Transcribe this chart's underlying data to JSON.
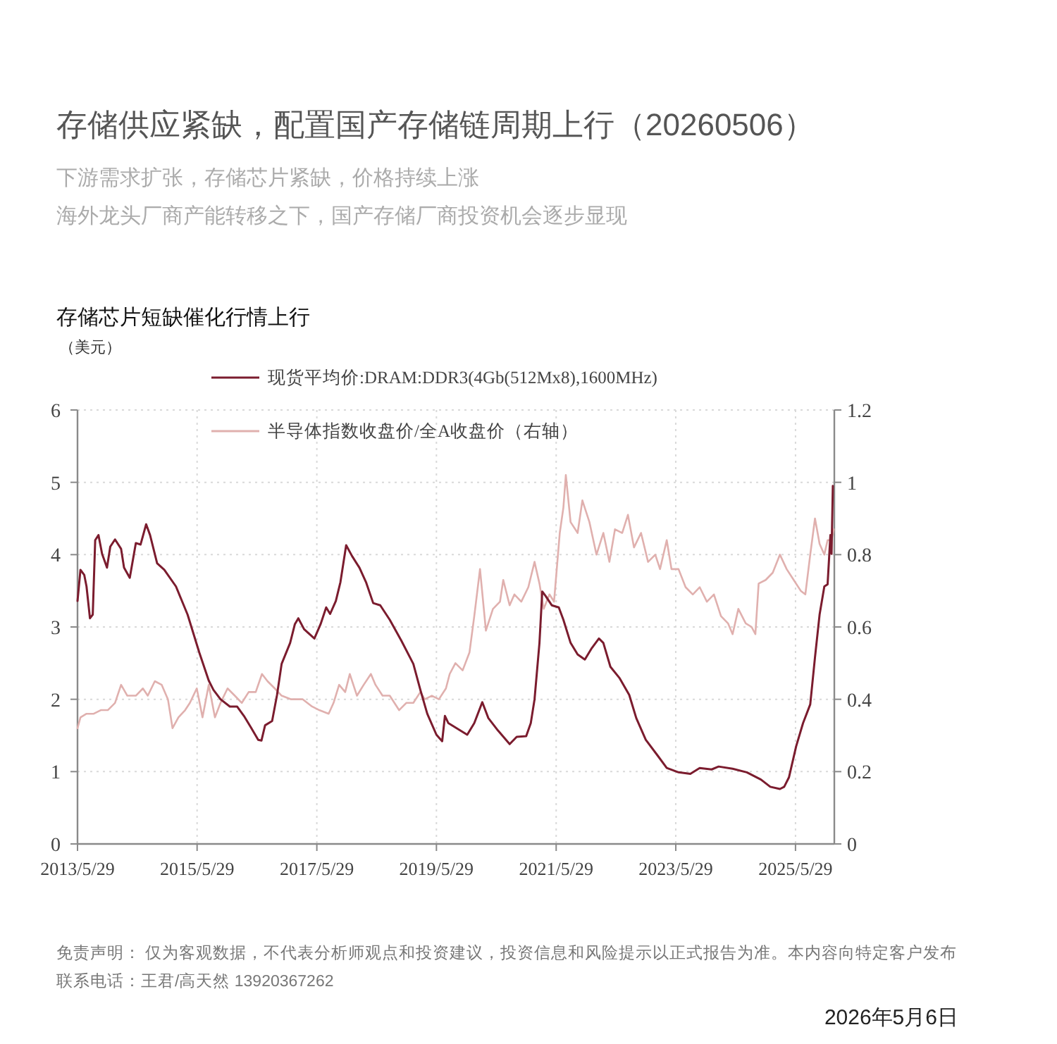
{
  "chart_data": {
    "type": "line",
    "title": "存储供应紧缺，配置国产存储链周期上行（20260506）",
    "subtitle": "下游需求扩张，存储芯片紧缺，价格持续上涨",
    "ylabel": "（美元）",
    "annotations": [
      "海外龙头厂商产能转移之下，国产存储厂商投资机会逐步显现",
      "存储芯片短缺催化行情上行",
      "免责声明： 仅为客观数据，不代表分析师观点和投资建议，投资信息和风险提示以正式报告为准。本内容向特定客户发布",
      "联系电话：王君/高天然 13920367262",
      "2026年5月6日"
    ],
    "xlim": [
      "2013-05-29",
      "2026-01-21"
    ],
    "xticks": [
      {
        "value": "2013-05-29",
        "label": "2013/5/29"
      },
      {
        "value": "2015-05-29",
        "label": "2015/5/29"
      },
      {
        "value": "2017-05-29",
        "label": "2017/5/29"
      },
      {
        "value": "2019-05-29",
        "label": "2019/5/29"
      },
      {
        "value": "2021-05-29",
        "label": "2021/5/29"
      },
      {
        "value": "2023-05-29",
        "label": "2023/5/29"
      },
      {
        "value": "2025-05-29",
        "label": "2025/5/29"
      }
    ],
    "ylim": [
      0,
      6
    ],
    "yticks": [
      0,
      1,
      2,
      3,
      4,
      5,
      6
    ],
    "y2lim": [
      0,
      1.2
    ],
    "y2ticks": [
      0,
      0.2,
      0.4,
      0.6,
      0.8,
      1,
      1.2
    ],
    "grid": true,
    "legend": "top",
    "series": [
      {
        "name": "现货平均价:DRAM:DDR3(4Gb(512Mx8),1600MHz)",
        "color": "#7b1c2e",
        "x": [
          "2013-05-29",
          "2013-06-16",
          "2013-07-09",
          "2013-07-23",
          "2013-08-13",
          "2013-08-30",
          "2013-09-14",
          "2013-10-04",
          "2013-10-26",
          "2013-11-25",
          "2013-12-15",
          "2014-01-13",
          "2014-02-19",
          "2014-03-09",
          "2014-04-13",
          "2014-05-20",
          "2014-06-18",
          "2014-07-22",
          "2014-08-15",
          "2014-09-27",
          "2014-11-10",
          "2015-01-20",
          "2015-04-01",
          "2015-06-11",
          "2015-08-08",
          "2015-09-06",
          "2015-10-19",
          "2015-12-15",
          "2016-01-28",
          "2016-03-10",
          "2016-04-22",
          "2016-06-05",
          "2016-06-25",
          "2016-07-17",
          "2016-08-29",
          "2016-09-28",
          "2016-10-26",
          "2016-12-17",
          "2017-01-15",
          "2017-02-05",
          "2017-03-12",
          "2017-05-14",
          "2017-06-21",
          "2017-07-25",
          "2017-08-18",
          "2017-09-22",
          "2017-10-20",
          "2017-11-24",
          "2017-12-30",
          "2018-02-13",
          "2018-03-25",
          "2018-05-08",
          "2018-06-20",
          "2018-08-17",
          "2018-10-27",
          "2019-01-08",
          "2019-02-20",
          "2019-04-03",
          "2019-05-29",
          "2019-07-03",
          "2019-07-20",
          "2019-08-10",
          "2019-12-03",
          "2020-01-15",
          "2020-03-04",
          "2020-04-10",
          "2020-06-07",
          "2020-08-18",
          "2020-09-30",
          "2020-11-27",
          "2020-12-25",
          "2021-01-17",
          "2021-02-16",
          "2021-03-05",
          "2021-03-25",
          "2021-05-02",
          "2021-06-14",
          "2021-07-12",
          "2021-08-25",
          "2021-10-07",
          "2021-11-20",
          "2022-01-02",
          "2022-02-14",
          "2022-03-13",
          "2022-04-25",
          "2022-06-21",
          "2022-08-18",
          "2022-09-30",
          "2022-11-27",
          "2023-02-08",
          "2023-04-04",
          "2023-06-15",
          "2023-08-26",
          "2023-10-22",
          "2024-01-03",
          "2024-02-15",
          "2024-05-10",
          "2024-08-05",
          "2024-10-30",
          "2024-12-26",
          "2025-02-23",
          "2025-03-21",
          "2025-04-19",
          "2025-06-02",
          "2025-07-14",
          "2025-08-27",
          "2025-09-25",
          "2025-10-23",
          "2025-11-21",
          "2025-12-11",
          "2025-12-28",
          "2026-01-04",
          "2026-01-12"
        ],
        "values": [
          3.36,
          3.79,
          3.72,
          3.56,
          3.12,
          3.17,
          4.2,
          4.27,
          4.01,
          3.82,
          4.11,
          4.21,
          4.08,
          3.82,
          3.68,
          4.16,
          4.14,
          4.42,
          4.27,
          3.88,
          3.79,
          3.56,
          3.17,
          2.65,
          2.26,
          2.13,
          2.0,
          1.9,
          1.9,
          1.77,
          1.61,
          1.44,
          1.43,
          1.64,
          1.7,
          2.06,
          2.49,
          2.78,
          3.04,
          3.12,
          2.97,
          2.84,
          3.04,
          3.27,
          3.18,
          3.36,
          3.62,
          4.13,
          3.98,
          3.82,
          3.62,
          3.33,
          3.3,
          3.1,
          2.81,
          2.49,
          2.13,
          1.8,
          1.51,
          1.42,
          1.77,
          1.67,
          1.51,
          1.67,
          1.96,
          1.74,
          1.57,
          1.38,
          1.48,
          1.49,
          1.67,
          2.0,
          2.78,
          3.49,
          3.43,
          3.3,
          3.27,
          3.1,
          2.78,
          2.62,
          2.55,
          2.71,
          2.84,
          2.78,
          2.45,
          2.29,
          2.06,
          1.74,
          1.44,
          1.22,
          1.05,
          0.99,
          0.97,
          1.05,
          1.03,
          1.07,
          1.04,
          0.99,
          0.89,
          0.79,
          0.76,
          0.79,
          0.92,
          1.35,
          1.67,
          1.93,
          2.58,
          3.17,
          3.56,
          3.59,
          4.27,
          4.01,
          4.95
        ]
      },
      {
        "name": "半导体指数收盘价/全A收盘价（右轴）",
        "color": "#e0b0ae",
        "axis": "y2",
        "x": [
          "2013-05-29",
          "2013-06-16",
          "2013-07-23",
          "2013-09-05",
          "2013-10-18",
          "2013-11-30",
          "2014-01-13",
          "2014-02-19",
          "2014-03-29",
          "2014-05-20",
          "2014-07-02",
          "2014-08-01",
          "2014-09-13",
          "2014-10-25",
          "2014-12-02",
          "2014-12-30",
          "2015-02-04",
          "2015-03-17",
          "2015-04-15",
          "2015-05-27",
          "2015-07-01",
          "2015-08-08",
          "2015-09-15",
          "2015-10-19",
          "2015-12-01",
          "2016-01-14",
          "2016-02-26",
          "2016-04-08",
          "2016-05-21",
          "2016-06-28",
          "2016-08-01",
          "2016-09-14",
          "2016-10-26",
          "2016-12-23",
          "2017-03-04",
          "2017-04-30",
          "2017-06-13",
          "2017-08-09",
          "2017-09-08",
          "2017-10-12",
          "2017-11-18",
          "2017-12-16",
          "2018-01-29",
          "2018-03-11",
          "2018-04-24",
          "2018-05-22",
          "2018-07-04",
          "2018-08-17",
          "2018-10-13",
          "2018-11-26",
          "2019-01-08",
          "2019-02-20",
          "2019-03-19",
          "2019-05-01",
          "2019-06-13",
          "2019-07-26",
          "2019-08-18",
          "2019-09-22",
          "2019-11-05",
          "2019-12-17",
          "2020-01-15",
          "2020-02-19",
          "2020-03-26",
          "2020-05-08",
          "2020-06-20",
          "2020-07-10",
          "2020-08-18",
          "2020-09-16",
          "2020-10-28",
          "2020-12-10",
          "2021-01-17",
          "2021-02-16",
          "2021-03-14",
          "2021-04-18",
          "2021-05-16",
          "2021-06-20",
          "2021-07-12",
          "2021-07-27",
          "2021-08-25",
          "2021-10-07",
          "2021-11-05",
          "2021-12-18",
          "2022-01-30",
          "2022-03-13",
          "2022-04-19",
          "2022-05-23",
          "2022-07-06",
          "2022-08-10",
          "2022-09-16",
          "2022-10-29",
          "2022-12-11",
          "2023-01-24",
          "2023-02-22",
          "2023-04-04",
          "2023-05-03",
          "2023-06-15",
          "2023-07-28",
          "2023-09-10",
          "2023-10-22",
          "2023-12-05",
          "2024-01-17",
          "2024-02-29",
          "2024-04-12",
          "2024-05-10",
          "2024-06-14",
          "2024-07-29",
          "2024-09-03",
          "2024-09-26",
          "2024-10-16",
          "2024-11-28",
          "2025-01-10",
          "2025-02-23",
          "2025-04-05",
          "2025-05-18",
          "2025-06-30",
          "2025-07-28",
          "2025-08-27",
          "2025-09-25",
          "2025-10-23",
          "2025-11-21",
          "2025-12-11",
          "2026-01-04",
          "2026-01-17"
        ],
        "values": [
          0.32,
          0.35,
          0.36,
          0.36,
          0.37,
          0.37,
          0.39,
          0.44,
          0.41,
          0.41,
          0.43,
          0.41,
          0.45,
          0.44,
          0.4,
          0.32,
          0.35,
          0.37,
          0.39,
          0.43,
          0.35,
          0.44,
          0.35,
          0.39,
          0.43,
          0.41,
          0.39,
          0.42,
          0.42,
          0.47,
          0.45,
          0.43,
          0.41,
          0.4,
          0.4,
          0.38,
          0.37,
          0.36,
          0.39,
          0.44,
          0.42,
          0.47,
          0.41,
          0.44,
          0.47,
          0.44,
          0.41,
          0.41,
          0.37,
          0.39,
          0.39,
          0.42,
          0.4,
          0.41,
          0.4,
          0.43,
          0.47,
          0.5,
          0.48,
          0.53,
          0.63,
          0.76,
          0.59,
          0.65,
          0.67,
          0.73,
          0.66,
          0.69,
          0.67,
          0.71,
          0.78,
          0.72,
          0.65,
          0.69,
          0.67,
          0.86,
          0.93,
          1.02,
          0.89,
          0.86,
          0.95,
          0.89,
          0.8,
          0.86,
          0.78,
          0.87,
          0.86,
          0.91,
          0.82,
          0.86,
          0.78,
          0.8,
          0.76,
          0.84,
          0.76,
          0.76,
          0.71,
          0.69,
          0.71,
          0.67,
          0.69,
          0.63,
          0.61,
          0.58,
          0.65,
          0.61,
          0.6,
          0.58,
          0.72,
          0.73,
          0.75,
          0.8,
          0.76,
          0.73,
          0.7,
          0.69,
          0.8,
          0.9,
          0.83,
          0.8,
          0.84,
          0.84,
          0.87
        ]
      }
    ]
  }
}
